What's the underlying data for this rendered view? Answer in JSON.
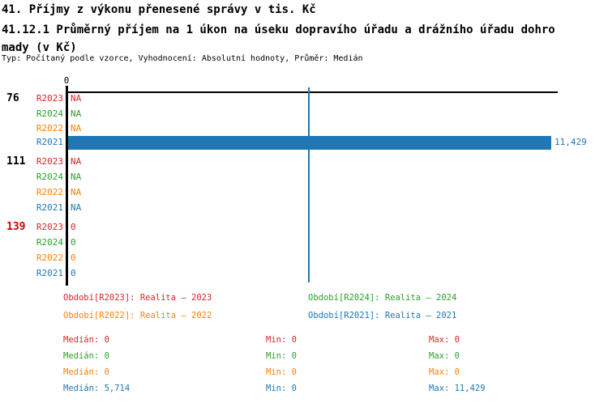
{
  "header": {
    "title": "41. Příjmy z výkonu přenesené správy v tis. Kč",
    "subtitle": "41.12.1 Průměrný příjem na 1 úkon na úseku dopravího úřadu a drážního úřadu dohromady (v Kč)",
    "meta": "Typ: Počítaný podle vzorce, Vyhodnocení: Absolutní hodnoty, Průměr: Medián"
  },
  "colors": {
    "R2023": "#d62728",
    "R2024": "#2ca02c",
    "R2022": "#ff7f0e",
    "R2021": "#1f77b4",
    "axis": "#000000",
    "alert_group": "#cc0000"
  },
  "chart_data": {
    "type": "bar",
    "orientation": "horizontal",
    "title": "41.12.1 Průměrný příjem na 1 úkon na úseku dopravího úřadu a drážního úřadu dohromady (v Kč)",
    "axis_tick_label": "0",
    "value_at_full_bar": 11429,
    "series_order": [
      "R2023",
      "R2024",
      "R2022",
      "R2021"
    ],
    "groups": [
      {
        "label": "76",
        "label_color": "#000000",
        "bars": [
          {
            "series": "R2023",
            "value": null,
            "label": "NA"
          },
          {
            "series": "R2024",
            "value": null,
            "label": "NA"
          },
          {
            "series": "R2022",
            "value": null,
            "label": "NA"
          },
          {
            "series": "R2021",
            "value": 11429,
            "label": "11,429"
          }
        ]
      },
      {
        "label": "111",
        "label_color": "#000000",
        "bars": [
          {
            "series": "R2023",
            "value": null,
            "label": "NA"
          },
          {
            "series": "R2024",
            "value": null,
            "label": "NA"
          },
          {
            "series": "R2022",
            "value": null,
            "label": "NA"
          },
          {
            "series": "R2021",
            "value": null,
            "label": "NA"
          }
        ]
      },
      {
        "label": "139",
        "label_color": "#cc0000",
        "bars": [
          {
            "series": "R2023",
            "value": 0,
            "label": "0"
          },
          {
            "series": "R2024",
            "value": 0,
            "label": "0"
          },
          {
            "series": "R2022",
            "value": 0,
            "label": "0"
          },
          {
            "series": "R2021",
            "value": 0,
            "label": "0"
          }
        ]
      }
    ],
    "reference_line": {
      "series": "R2021",
      "value": 5714,
      "color": "#1f77b4"
    }
  },
  "legend": {
    "items": [
      {
        "text": "Období[R2023]: Realita – 2023",
        "color": "#d62728"
      },
      {
        "text": "Období[R2024]: Realita – 2024",
        "color": "#2ca02c"
      },
      {
        "text": "Období[R2022]: Realita – 2022",
        "color": "#ff7f0e"
      },
      {
        "text": "Období[R2021]: Realita – 2021",
        "color": "#1f77b4"
      }
    ]
  },
  "stats": {
    "rows": [
      {
        "series": "R2023",
        "color": "#d62728",
        "cells": [
          "Medián: 0",
          "Min: 0",
          "Max: 0"
        ]
      },
      {
        "series": "R2024",
        "color": "#2ca02c",
        "cells": [
          "Medián: 0",
          "Min: 0",
          "Max: 0"
        ]
      },
      {
        "series": "R2022",
        "color": "#ff7f0e",
        "cells": [
          "Medián: 0",
          "Min: 0",
          "Max: 0"
        ]
      },
      {
        "series": "R2021",
        "color": "#1f77b4",
        "cells": [
          "Medián: 5,714",
          "Min: 0",
          "Max: 11,429"
        ]
      }
    ]
  }
}
